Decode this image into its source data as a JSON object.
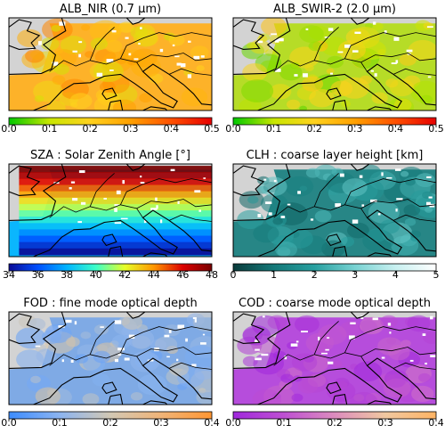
{
  "figure": {
    "background": "#ffffff",
    "land_color": "#d3d3d3",
    "coast_color": "#000000",
    "missing_color": "#ffffff",
    "panels": [
      {
        "id": "alb-nir",
        "title": "ALB_NIR (0.7 µm)",
        "colormap": [
          "#00c800",
          "#c8e600",
          "#ffd21e",
          "#ffa000",
          "#ff5000",
          "#e60000"
        ],
        "dominant_color": "#ffb020",
        "colorbar": {
          "min": 0.0,
          "max": 0.5,
          "ticks": [
            "0.0",
            "0.1",
            "0.2",
            "0.3",
            "0.4",
            "0.5"
          ]
        }
      },
      {
        "id": "alb-swir2",
        "title": "ALB_SWIR-2 (2.0 µm)",
        "colormap": [
          "#00c800",
          "#c8e600",
          "#ffd21e",
          "#ffa000",
          "#ff5000",
          "#e60000"
        ],
        "dominant_color": "#b4dc1e",
        "colorbar": {
          "min": 0.0,
          "max": 0.5,
          "ticks": [
            "0.0",
            "0.1",
            "0.2",
            "0.3",
            "0.4",
            "0.5"
          ]
        }
      },
      {
        "id": "sza",
        "title": "SZA : Solar Zenith Angle [°]",
        "colormap": [
          "#0a0a96",
          "#0050ff",
          "#00b4ff",
          "#3cffc8",
          "#e6ff28",
          "#ff9600",
          "#dc0000",
          "#780000"
        ],
        "dominant_color": "#00b4ff",
        "colorbar": {
          "min": 34,
          "max": 48,
          "ticks": [
            "34",
            "36",
            "38",
            "40",
            "42",
            "44",
            "46",
            "48"
          ]
        }
      },
      {
        "id": "clh",
        "title": "CLH : coarse layer height [km]",
        "colormap": [
          "#0a3c3c",
          "#147878",
          "#28a0a0",
          "#78d2d2",
          "#c8f0f0",
          "#ffffff"
        ],
        "dominant_color": "#1e8282",
        "colorbar": {
          "min": 0,
          "max": 5,
          "ticks": [
            "0",
            "1",
            "2",
            "3",
            "4",
            "5"
          ]
        }
      },
      {
        "id": "fod",
        "title": "FOD : fine mode optical depth",
        "colormap": [
          "#3c8cff",
          "#8cb4f0",
          "#d2c8b4",
          "#f0b478",
          "#ff9632"
        ],
        "dominant_color": "#7aa8e6",
        "colorbar": {
          "min": 0.0,
          "max": 0.4,
          "ticks": [
            "0.0",
            "0.1",
            "0.2",
            "0.3",
            "0.4"
          ]
        }
      },
      {
        "id": "cod",
        "title": "COD : coarse mode optical depth",
        "colormap": [
          "#a028dc",
          "#be50d2",
          "#dc8cbe",
          "#f0c8a0",
          "#ffb464"
        ],
        "dominant_color": "#b446dc",
        "colorbar": {
          "min": 0.0,
          "max": 0.4,
          "ticks": [
            "0.0",
            "0.1",
            "0.2",
            "0.3",
            "0.4"
          ]
        }
      }
    ]
  }
}
